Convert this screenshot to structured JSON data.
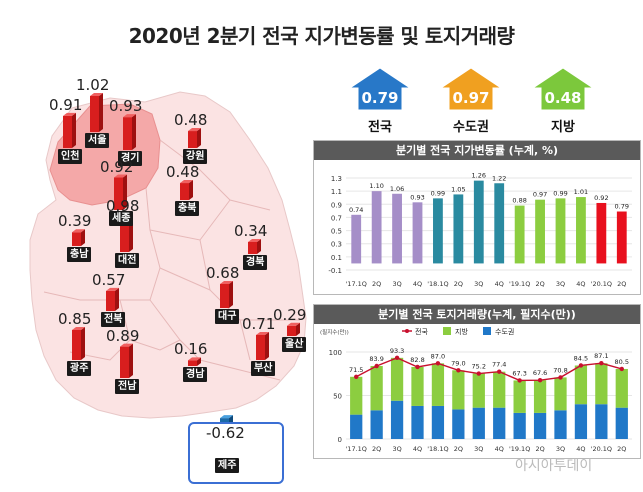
{
  "title": "2020년 2분기 전국 지가변동률 및 토지거래량",
  "summary": [
    {
      "label": "전국",
      "value": "0.79",
      "color": "#2878c8"
    },
    {
      "label": "수도권",
      "value": "0.97",
      "color": "#f0a020"
    },
    {
      "label": "지방",
      "value": "0.48",
      "color": "#7cc83c"
    }
  ],
  "regions": [
    {
      "name": "인천",
      "value": "0.91"
    },
    {
      "name": "서울",
      "value": "1.02"
    },
    {
      "name": "경기",
      "value": "0.93"
    },
    {
      "name": "강원",
      "value": "0.48"
    },
    {
      "name": "세종",
      "value": "0.92"
    },
    {
      "name": "충북",
      "value": "0.48"
    },
    {
      "name": "충남",
      "value": "0.39"
    },
    {
      "name": "대전",
      "value": "0.98"
    },
    {
      "name": "경북",
      "value": "0.34"
    },
    {
      "name": "전북",
      "value": "0.57"
    },
    {
      "name": "대구",
      "value": "0.68"
    },
    {
      "name": "울산",
      "value": "0.29"
    },
    {
      "name": "광주",
      "value": "0.85"
    },
    {
      "name": "전남",
      "value": "0.89"
    },
    {
      "name": "경남",
      "value": "0.16"
    },
    {
      "name": "부산",
      "value": "0.71"
    },
    {
      "name": "제주",
      "value": "-0.62"
    }
  ],
  "watermark": "아시아투데이",
  "chart_data": [
    {
      "type": "bar",
      "title": "분기별 전국 지가변동률 (누계, %)",
      "categories": [
        "'17.1Q",
        "2Q",
        "3Q",
        "4Q",
        "'18.1Q",
        "2Q",
        "3Q",
        "4Q",
        "'19.1Q",
        "2Q",
        "3Q",
        "4Q",
        "'20.1Q",
        "2Q"
      ],
      "values": [
        0.74,
        1.1,
        1.06,
        0.93,
        0.99,
        1.05,
        1.26,
        1.22,
        0.88,
        0.97,
        0.99,
        1.01,
        0.92,
        0.79
      ],
      "value_labels": [
        "0.74",
        "1.10",
        "1.06",
        "0.93",
        "0.99",
        "1.05",
        "1.26",
        "1.22",
        "0.88",
        "0.97",
        "0.99",
        "1.01",
        "0.92",
        "0.79"
      ],
      "bar_colors": [
        "#a58ec8",
        "#a58ec8",
        "#a58ec8",
        "#a58ec8",
        "#2a8aa0",
        "#2a8aa0",
        "#2a8aa0",
        "#2a8aa0",
        "#8ccd40",
        "#8ccd40",
        "#8ccd40",
        "#8ccd40",
        "#e8101e",
        "#e8101e"
      ],
      "ylim": [
        -0.1,
        1.3
      ],
      "yticks": [
        "-0.1",
        "0.1",
        "0.3",
        "0.5",
        "0.7",
        "0.9",
        "1.1",
        "1.3"
      ],
      "ytick_values": [
        -0.1,
        0.1,
        0.3,
        0.5,
        0.7,
        0.9,
        1.1,
        1.3
      ]
    },
    {
      "type": "bar",
      "title": "분기별 전국 토지거래량(누계, 필지수(만))",
      "unit_label": "(필지수(만))",
      "categories": [
        "'17.1Q",
        "2Q",
        "3Q",
        "4Q",
        "'18.1Q",
        "2Q",
        "3Q",
        "4Q",
        "'19.1Q",
        "2Q",
        "3Q",
        "4Q",
        "'20.1Q",
        "2Q"
      ],
      "series": [
        {
          "name": "수도권",
          "color": "#2078c8",
          "values": [
            28,
            33,
            44,
            38,
            38,
            34,
            36,
            36,
            30,
            30,
            33,
            40,
            40,
            36
          ]
        },
        {
          "name": "지방",
          "color": "#8ccd40",
          "values": [
            43.5,
            50.9,
            49.3,
            44.8,
            49,
            45,
            39.2,
            41.4,
            37.3,
            37.6,
            37.8,
            44.5,
            47.1,
            44.5
          ]
        }
      ],
      "line": {
        "name": "전국",
        "color": "#c8102e",
        "values": [
          71.5,
          83.9,
          93.3,
          82.8,
          87.0,
          79.0,
          75.2,
          77.4,
          67.3,
          67.6,
          70.8,
          84.5,
          87.1,
          80.5
        ]
      },
      "line_labels": [
        "71.5",
        "83.9",
        "93.3",
        "82.8",
        "87.0",
        "79.0",
        "75.2",
        "77.4",
        "67.3",
        "67.6",
        "70.8",
        "84.5",
        "87.1",
        "80.5"
      ],
      "ylim": [
        0,
        100
      ],
      "yticks": [
        "0",
        "50",
        "100"
      ],
      "ytick_values": [
        0,
        50,
        100
      ],
      "legend_position": "top"
    }
  ]
}
